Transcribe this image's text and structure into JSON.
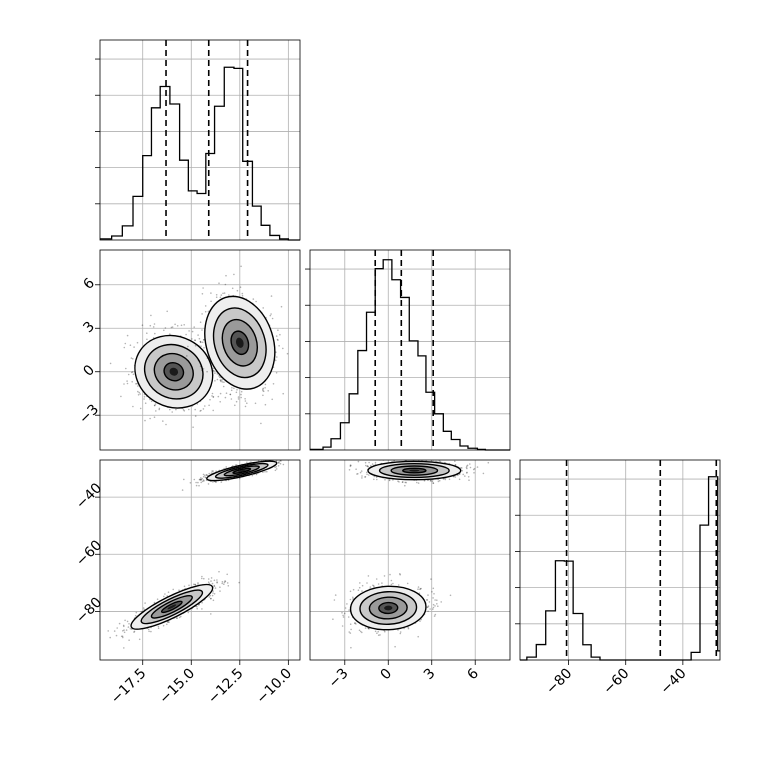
{
  "chart_data": {
    "type": "corner",
    "grid": true,
    "legend": "none",
    "colors": {
      "line": "#000000",
      "grid": "#b0b0b0",
      "scatter": "#000000",
      "background": "#ffffff"
    },
    "parameters": [
      {
        "range": [
          -19.7,
          -9.4
        ]
      },
      {
        "range": [
          -5.4,
          8.4
        ]
      },
      {
        "range": [
          -97,
          -27
        ]
      }
    ],
    "ticks": {
      "p0": {
        "values": [
          -17.5,
          -15.0,
          -12.5,
          -10.0
        ],
        "labels": [
          "−17.5",
          "−15.0",
          "−12.5",
          "−10.0"
        ]
      },
      "p1": {
        "values": [
          -3,
          0,
          3,
          6
        ],
        "labels": [
          "−3",
          "0",
          "3",
          "6"
        ]
      },
      "p2": {
        "values": [
          -80,
          -60,
          -40
        ],
        "labels": [
          "−80",
          "−60",
          "−40"
        ]
      }
    },
    "histograms": [
      {
        "param": 0,
        "quantiles": [
          -16.3,
          -14.1,
          -12.1
        ],
        "bin_edges": [
          -19.7,
          -19.1,
          -18.55,
          -18.0,
          -17.5,
          -17.05,
          -16.6,
          -16.1,
          -15.6,
          -15.15,
          -14.7,
          -14.25,
          -13.8,
          -13.3,
          -12.8,
          -12.35,
          -11.85,
          -11.4,
          -10.95,
          -10.45,
          -10.0,
          -9.4
        ],
        "counts": [
          0.006,
          0.021,
          0.074,
          0.229,
          0.443,
          0.694,
          0.806,
          0.714,
          0.419,
          0.258,
          0.244,
          0.454,
          0.702,
          0.907,
          0.901,
          0.413,
          0.178,
          0.077,
          0.024,
          0.006,
          0.0
        ]
      },
      {
        "param": 1,
        "quantiles": [
          -0.9,
          0.9,
          3.1
        ],
        "bin_edges": [
          -5.4,
          -4.5,
          -3.95,
          -3.3,
          -2.7,
          -2.1,
          -1.5,
          -0.9,
          -0.35,
          0.25,
          0.85,
          1.45,
          2.05,
          2.6,
          3.2,
          3.8,
          4.35,
          4.95,
          5.5,
          6.15,
          6.7,
          8.4
        ],
        "counts": [
          0.003,
          0.015,
          0.059,
          0.143,
          0.295,
          0.522,
          0.723,
          0.952,
          0.999,
          0.894,
          0.801,
          0.573,
          0.494,
          0.303,
          0.19,
          0.098,
          0.055,
          0.021,
          0.009,
          0.003,
          0.0
        ]
      },
      {
        "param": 2,
        "quantiles": [
          -80.7,
          -47.9,
          -28.3
        ],
        "bin_edges": [
          -97,
          -94.6,
          -91.3,
          -88.0,
          -84.6,
          -81.5,
          -78.4,
          -75.0,
          -72.1,
          -69.0,
          -65.7,
          -62.6,
          -59.5,
          -56.2,
          -53.1,
          -49.9,
          -46.5,
          -43.5,
          -40.4,
          -37.1,
          -34.0,
          -31.0,
          -27.8,
          -27
        ],
        "counts": [
          0.0,
          0.015,
          0.081,
          0.258,
          0.521,
          0.519,
          0.244,
          0.08,
          0.015,
          0.0,
          0.0,
          0.0,
          0.0,
          0.0,
          0.0,
          0.0,
          0.0,
          0.0,
          0.0,
          0.04,
          0.708,
          0.962,
          0.048
        ]
      }
    ],
    "pairs": [
      {
        "x_param": 0,
        "y_param": 1,
        "clusters": [
          {
            "center": [
              -15.9,
              0.0
            ],
            "sigma": [
              1.0,
              1.25
            ],
            "rho": -0.1,
            "weight": 0.5
          },
          {
            "center": [
              -12.5,
              2.0
            ],
            "sigma": [
              0.9,
              1.6
            ],
            "rho": -0.2,
            "weight": 0.5
          }
        ]
      },
      {
        "x_param": 0,
        "y_param": 2,
        "clusters": [
          {
            "center": [
              -16.0,
              -78.4
            ],
            "sigma": [
              1.05,
              3.9
            ],
            "rho": 0.85,
            "weight": 0.5
          },
          {
            "center": [
              -12.4,
              -30.8
            ],
            "sigma": [
              0.9,
              1.7
            ],
            "rho": 0.8,
            "weight": 0.5
          }
        ]
      },
      {
        "x_param": 1,
        "y_param": 2,
        "clusters": [
          {
            "center": [
              0.0,
              -78.8
            ],
            "sigma": [
              1.3,
              3.8
            ],
            "rho": 0.05,
            "weight": 0.5
          },
          {
            "center": [
              1.8,
              -30.7
            ],
            "sigma": [
              1.6,
              1.6
            ],
            "rho": 0.0,
            "weight": 0.5
          }
        ]
      }
    ]
  }
}
